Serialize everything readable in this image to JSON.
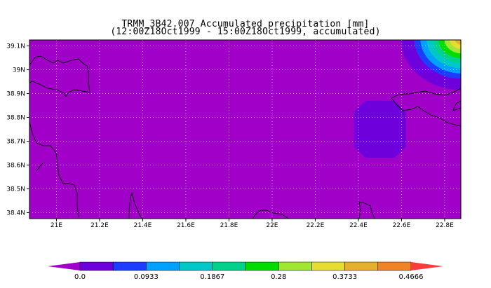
{
  "title": "TRMM_3B42.007 Accumulated precipitation [mm]",
  "subtitle": "(12:00Z18Oct1999 - 15:00Z18Oct1999, accumulated)",
  "chart_data": {
    "type": "heatmap",
    "title": "TRMM_3B42.007 Accumulated precipitation [mm]",
    "subtitle": "(12:00Z18Oct1999 - 15:00Z18Oct1999, accumulated)",
    "xlabel": "",
    "ylabel": "",
    "xlim": [
      20.875,
      22.875
    ],
    "ylim": [
      38.375,
      39.125
    ],
    "grid": true,
    "x_ticks": [
      21.0,
      21.2,
      21.4,
      21.6,
      21.8,
      22.0,
      22.2,
      22.4,
      22.6,
      22.8
    ],
    "x_tick_labels": [
      "21E",
      "21.2E",
      "21.4E",
      "21.6E",
      "21.8E",
      "22E",
      "22.2E",
      "22.4E",
      "22.6E",
      "22.8E"
    ],
    "y_ticks": [
      38.4,
      38.5,
      38.6,
      38.7,
      38.8,
      38.9,
      39.0,
      39.1
    ],
    "y_tick_labels": [
      "38.4N",
      "38.5N",
      "38.6N",
      "38.7N",
      "38.8N",
      "38.9N",
      "39N",
      "39.1N"
    ],
    "background_value": 0.0,
    "features": [
      {
        "name": "light patch",
        "lon_range": [
          22.38,
          22.62
        ],
        "lat_range": [
          38.63,
          38.87
        ],
        "value": 0.03
      },
      {
        "name": "northeast gradient",
        "center_lon": 22.88,
        "center_lat": 39.13,
        "peak_value": 0.44
      }
    ],
    "colorbar": {
      "labels": [
        "0.0",
        "0.0933",
        "0.1867",
        "0.28",
        "0.3733",
        "0.4666"
      ],
      "colors": [
        "#a000c8",
        "#6e00dc",
        "#1e3cff",
        "#00a0ff",
        "#00c8c8",
        "#00d28c",
        "#00dc00",
        "#a0e632",
        "#e6dc32",
        "#e6af2d",
        "#f08228",
        "#fa3c3c"
      ]
    }
  }
}
